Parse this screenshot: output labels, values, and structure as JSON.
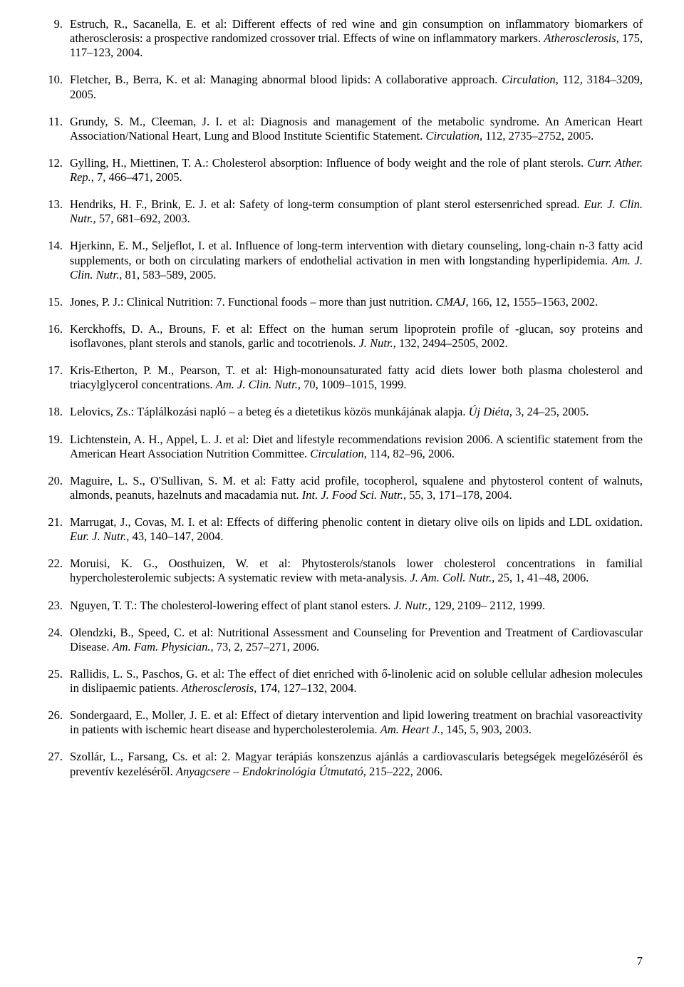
{
  "page_number": "7",
  "refs": [
    {
      "num": "9.",
      "parts": [
        {
          "t": "Estruch, R., Sacanella, E. et al: Different effects of red wine and gin consumption on inflammatory biomarkers of atherosclerosis: a prospective randomized crossover trial. Effects of wine on inflammatory markers. "
        },
        {
          "t": "Atherosclerosis",
          "i": true
        },
        {
          "t": ", 175, 117–123, 2004."
        }
      ]
    },
    {
      "num": "10.",
      "parts": [
        {
          "t": "Fletcher, B., Berra, K. et al: Managing abnormal blood lipids: A collaborative approach. "
        },
        {
          "t": "Circulation",
          "i": true
        },
        {
          "t": ", 112, 3184–3209, 2005."
        }
      ]
    },
    {
      "num": "11.",
      "parts": [
        {
          "t": "Grundy, S. M., Cleeman, J. I. et al: Diagnosis and management of the metabolic syndrome. An American Heart Association/National Heart, Lung and Blood Institute Scientific Statement. "
        },
        {
          "t": "Circulation",
          "i": true
        },
        {
          "t": ", 112, 2735–2752, 2005."
        }
      ]
    },
    {
      "num": "12.",
      "parts": [
        {
          "t": "Gylling, H., Miettinen, T. A.: Cholesterol absorption: Influence of body weight and the role of plant sterols. "
        },
        {
          "t": "Curr. Ather. Rep.",
          "i": true
        },
        {
          "t": ", 7, 466–471, 2005."
        }
      ]
    },
    {
      "num": "13.",
      "parts": [
        {
          "t": "Hendriks, H. F., Brink, E. J. et al: Safety of long-term consumption of plant sterol estersenriched spread. "
        },
        {
          "t": "Eur. J. Clin. Nutr.,",
          "i": true
        },
        {
          "t": " 57, 681–692, 2003."
        }
      ]
    },
    {
      "num": "14.",
      "parts": [
        {
          "t": "Hjerkinn, E. M., Seljeflot, I. et al. Influence of long-term intervention with dietary counseling, long-chain n-3 fatty acid supplements, or both on circulating markers of endothelial activation in men with longstanding hyperlipidemia. "
        },
        {
          "t": "Am. J. Clin. Nutr.,",
          "i": true
        },
        {
          "t": " 81, 583–589, 2005."
        }
      ]
    },
    {
      "num": "15.",
      "parts": [
        {
          "t": "Jones, P. J.: Clinical Nutrition: 7. Functional foods – more than just nutrition. "
        },
        {
          "t": "CMAJ",
          "i": true
        },
        {
          "t": ", 166, 12, 1555–1563, 2002."
        }
      ]
    },
    {
      "num": "16.",
      "parts": [
        {
          "t": "Kerckhoffs, D. A., Brouns, F. et al: Effect on the human serum lipoprotein profile of   -glucan, soy proteins and isoflavones, plant sterols and stanols, garlic and tocotrienols. "
        },
        {
          "t": "J. Nutr.,",
          "i": true
        },
        {
          "t": " 132, 2494–2505, 2002."
        }
      ]
    },
    {
      "num": "17.",
      "parts": [
        {
          "t": "Kris-Etherton, P. M., Pearson, T. et al: High-monounsaturated fatty acid diets lower both plasma cholesterol and triacylglycerol concentrations. "
        },
        {
          "t": "Am. J. Clin. Nutr.,",
          "i": true
        },
        {
          "t": " 70, 1009–1015, 1999."
        }
      ]
    },
    {
      "num": "18.",
      "parts": [
        {
          "t": "Lelovics, Zs.: Táplálkozási napló – a beteg és a dietetikus közös munkájának alapja. "
        },
        {
          "t": "Új Diéta",
          "i": true
        },
        {
          "t": ", 3, 24–25, 2005."
        }
      ]
    },
    {
      "num": "19.",
      "parts": [
        {
          "t": "Lichtenstein, A. H., Appel, L. J. et al: Diet and lifestyle recommendations revision 2006. A scientific statement from the American Heart Association Nutrition Committee. "
        },
        {
          "t": "Circulation",
          "i": true
        },
        {
          "t": ", 114, 82–96, 2006."
        }
      ]
    },
    {
      "num": "20.",
      "parts": [
        {
          "t": "Maguire, L. S., O'Sullivan, S. M. et al: Fatty acid profile, tocopherol, squalene and phytosterol content of walnuts, almonds, peanuts, hazelnuts and macadamia nut. "
        },
        {
          "t": "Int. J. Food Sci. Nutr.",
          "i": true
        },
        {
          "t": ", 55, 3, 171–178, 2004."
        }
      ]
    },
    {
      "num": "21.",
      "parts": [
        {
          "t": "Marrugat, J., Covas, M. I. et al: Effects of differing phenolic content in dietary olive oils on lipids and LDL oxidation. "
        },
        {
          "t": "Eur. J. Nutr.,",
          "i": true
        },
        {
          "t": " 43, 140–147, 2004."
        }
      ]
    },
    {
      "num": "22.",
      "parts": [
        {
          "t": "Moruisi, K. G., Oosthuizen, W. et al: Phytosterols/stanols lower cholesterol concentrations in familial hypercholesterolemic subjects: A systematic review with meta-analysis. "
        },
        {
          "t": "J. Am. Coll. Nutr.,",
          "i": true
        },
        {
          "t": " 25, 1, 41–48, 2006."
        }
      ]
    },
    {
      "num": "23.",
      "parts": [
        {
          "t": "Nguyen, T. T.: The cholesterol-lowering effect of plant stanol esters. "
        },
        {
          "t": "J. Nutr.",
          "i": true
        },
        {
          "t": ", 129, 2109– 2112, 1999."
        }
      ]
    },
    {
      "num": "24.",
      "parts": [
        {
          "t": "Olendzki, B., Speed, C. et al: Nutritional Assessment and Counseling for Prevention and Treatment of Cardiovascular Disease. "
        },
        {
          "t": "Am. Fam. Physician.",
          "i": true
        },
        {
          "t": ", 73, 2, 257–271, 2006."
        }
      ]
    },
    {
      "num": "25.",
      "parts": [
        {
          "t": "Rallidis, L. S., Paschos, G. et al: The effect of diet enriched with ő-linolenic acid on soluble cellular adhesion molecules in dislipaemic patients. "
        },
        {
          "t": "Atherosclerosis,",
          "i": true
        },
        {
          "t": " 174, 127–132, 2004."
        }
      ]
    },
    {
      "num": "26.",
      "parts": [
        {
          "t": "Sondergaard, E., Moller, J. E. et al: Effect of dietary intervention and lipid lowering treatment on brachial vasoreactivity in patients with ischemic heart disease and hypercholesterolemia. "
        },
        {
          "t": "Am. Heart J.",
          "i": true
        },
        {
          "t": ", 145, 5, 903, 2003."
        }
      ]
    },
    {
      "num": "27.",
      "parts": [
        {
          "t": "Szollár, L., Farsang, Cs. et al: 2. Magyar terápiás konszenzus ajánlás a cardiovascularis betegségek megelőzéséről és preventív kezeléséről. "
        },
        {
          "t": "Anyagcsere – Endokrinológia Útmutató",
          "i": true
        },
        {
          "t": ", 215–222, 2006."
        }
      ]
    }
  ]
}
